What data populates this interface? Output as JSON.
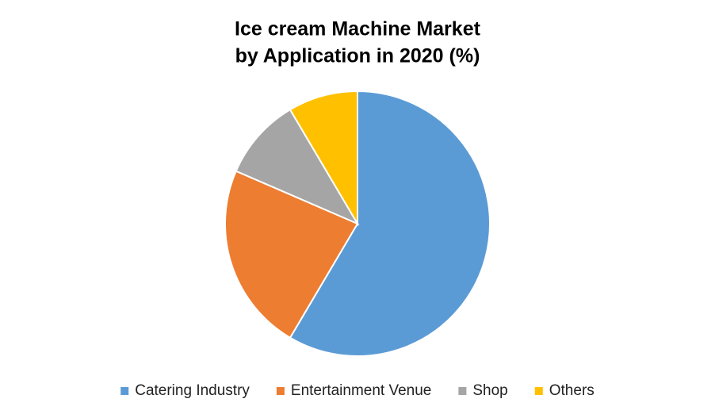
{
  "chart_data": {
    "type": "pie",
    "title": [
      "Ice cream Machine Market",
      "by Application in 2020 (%)"
    ],
    "categories": [
      "Catering Industry",
      "Entertainment Venue",
      "Shop",
      "Others"
    ],
    "values": [
      58.5,
      23,
      10,
      8.5
    ],
    "colors": [
      "#5b9bd5",
      "#ed7d31",
      "#a5a5a5",
      "#ffc000"
    ],
    "legend": "bottom"
  }
}
